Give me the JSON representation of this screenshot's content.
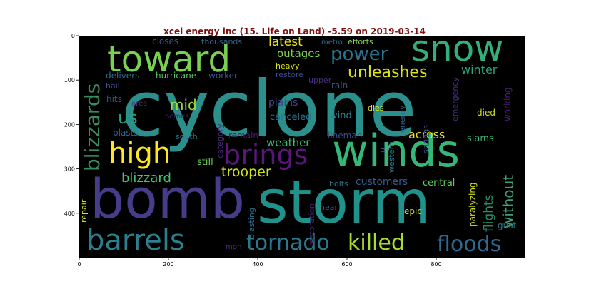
{
  "title": "xcel energy inc (15. Life on Land) -5.59 on 2019-03-14",
  "background": "#000000",
  "x_ticks": [
    "0",
    "200",
    "400",
    "600",
    "800"
  ],
  "y_ticks": [
    "0",
    "100",
    "200",
    "300",
    "400"
  ],
  "words": [
    {
      "text": "cyclone",
      "color": "#2b8f8c"
    },
    {
      "text": "storm",
      "color": "#21918c"
    },
    {
      "text": "bomb",
      "color": "#453d8a"
    },
    {
      "text": "winds",
      "color": "#35b779"
    },
    {
      "text": "snow",
      "color": "#33b07a"
    },
    {
      "text": "toward",
      "color": "#7ad151"
    },
    {
      "text": "barrels",
      "color": "#2c7f8e"
    },
    {
      "text": "high",
      "color": "#fde725"
    },
    {
      "text": "brings",
      "color": "#5a167a"
    },
    {
      "text": "tornado",
      "color": "#2a788e"
    },
    {
      "text": "killed",
      "color": "#a8db34"
    },
    {
      "text": "floods",
      "color": "#31688e"
    },
    {
      "text": "power",
      "color": "#2c728e"
    },
    {
      "text": "unleashes",
      "color": "#dde318"
    },
    {
      "text": "blizzards",
      "color": "#3b8c5c"
    },
    {
      "text": "latest",
      "color": "#e5e419"
    },
    {
      "text": "winter",
      "color": "#2ea37a"
    },
    {
      "text": "us",
      "color": "#2a9f86"
    },
    {
      "text": "mid",
      "color": "#9fd938"
    },
    {
      "text": "blizzard",
      "color": "#48c16e"
    },
    {
      "text": "trooper",
      "color": "#d2e21b"
    },
    {
      "text": "without",
      "color": "#3e9f7a"
    },
    {
      "text": "flights",
      "color": "#2a8a6c"
    },
    {
      "text": "across",
      "color": "#e6e01e"
    },
    {
      "text": "weather",
      "color": "#3cbc75"
    },
    {
      "text": "customers",
      "color": "#375a8c"
    },
    {
      "text": "outages",
      "color": "#7cd250"
    },
    {
      "text": "plains",
      "color": "#3e4a89"
    },
    {
      "text": "canceled",
      "color": "#2c718e"
    },
    {
      "text": "wind",
      "color": "#2c7f8e"
    },
    {
      "text": "slams",
      "color": "#3ab877"
    },
    {
      "text": "central",
      "color": "#67cc5c"
    },
    {
      "text": "lineman",
      "color": "#3e4989"
    },
    {
      "text": "remain",
      "color": "#481a6c"
    },
    {
      "text": "still",
      "color": "#6ccd5a"
    },
    {
      "text": "delivers",
      "color": "#2f6c8e"
    },
    {
      "text": "hurricane",
      "color": "#56c667"
    },
    {
      "text": "worker",
      "color": "#3b528b"
    },
    {
      "text": "closes",
      "color": "#3b518b"
    },
    {
      "text": "thousands",
      "color": "#33638d"
    },
    {
      "text": "latest2",
      "color": "#e5e419"
    },
    {
      "text": "metro",
      "color": "#2d708e"
    },
    {
      "text": "efforts",
      "color": "#83d34b"
    },
    {
      "text": "heavy",
      "color": "#d8e219"
    },
    {
      "text": "restore",
      "color": "#3e4c8a"
    },
    {
      "text": "upper",
      "color": "#472f7d"
    },
    {
      "text": "rain",
      "color": "#3b518b"
    },
    {
      "text": "hail",
      "color": "#3e4c8a"
    },
    {
      "text": "area",
      "color": "#453581"
    },
    {
      "text": "hits",
      "color": "#3b528b"
    },
    {
      "text": "homes",
      "color": "#482677"
    },
    {
      "text": "category",
      "color": "#472c7a"
    },
    {
      "text": "blasts",
      "color": "#31688e"
    },
    {
      "text": "south",
      "color": "#2c738e"
    },
    {
      "text": "dies",
      "color": "#e7e419"
    },
    {
      "text": "died",
      "color": "#d0e11c"
    },
    {
      "text": "energy",
      "color": "#31678e"
    },
    {
      "text": "emergency",
      "color": "#46307e"
    },
    {
      "text": "springs",
      "color": "#3d4d8a"
    },
    {
      "text": "working",
      "color": "#482173"
    },
    {
      "text": "western",
      "color": "#2b758e"
    },
    {
      "text": "u",
      "color": "#3e4a89"
    },
    {
      "text": "bolts",
      "color": "#2c718e"
    },
    {
      "text": "paralyzing",
      "color": "#d5e21a"
    },
    {
      "text": "epic",
      "color": "#bade28"
    },
    {
      "text": "gust",
      "color": "#2a778e"
    },
    {
      "text": "near",
      "color": "#3b528b"
    },
    {
      "text": "restoration",
      "color": "#482374"
    },
    {
      "text": "blasting",
      "color": "#2d708e"
    },
    {
      "text": "repair",
      "color": "#d8e219"
    },
    {
      "text": "mph",
      "color": "#472d7b"
    }
  ]
}
